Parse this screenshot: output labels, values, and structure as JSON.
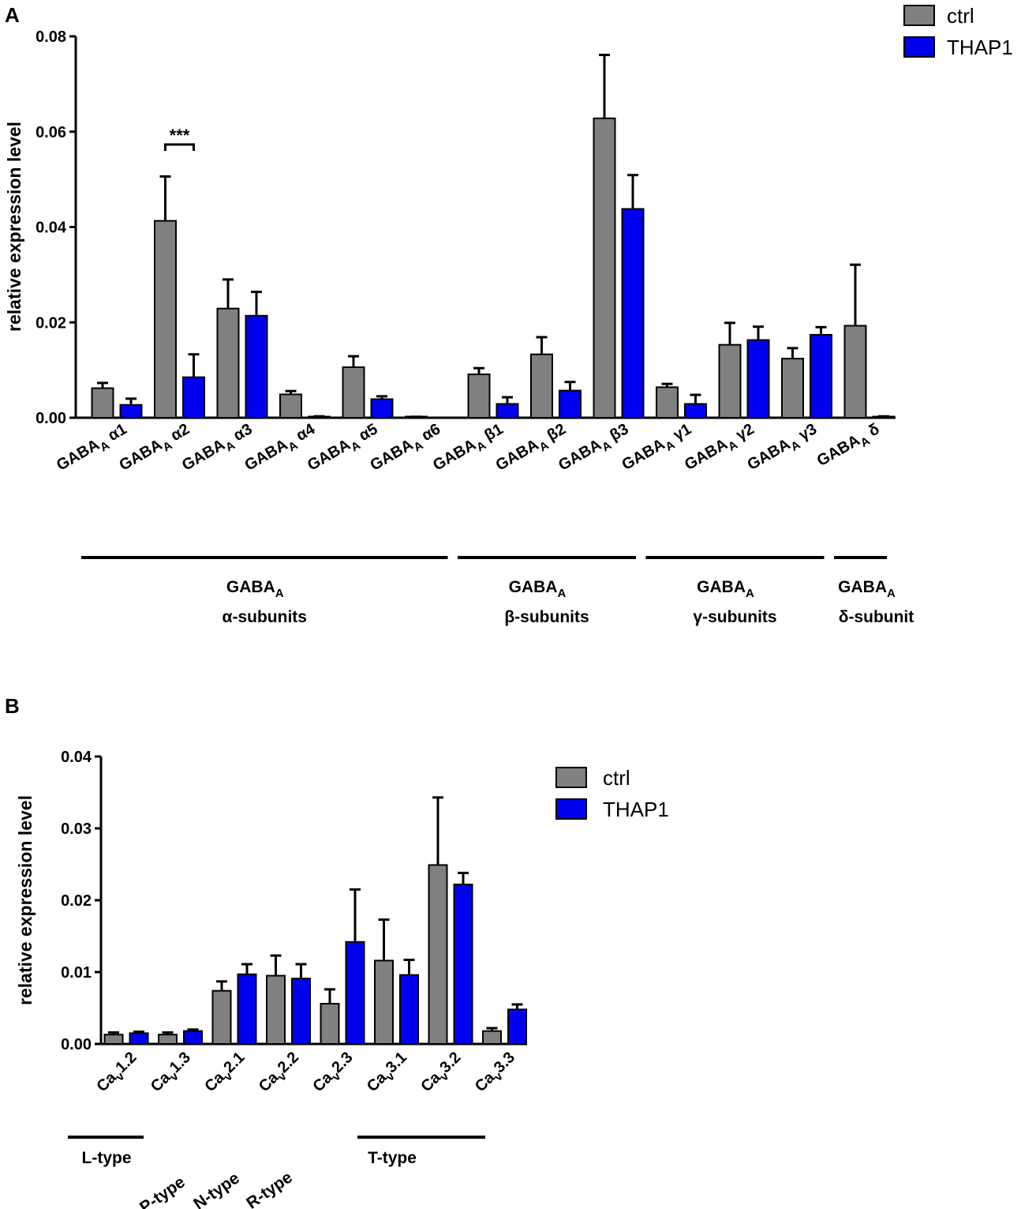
{
  "colors": {
    "ctrl": "#808080",
    "thap1": "#0000f0",
    "axis": "#000000"
  },
  "chart_data": [
    {
      "panel": "A",
      "type": "bar",
      "ylabel": "relative expression level",
      "ylim": [
        0,
        0.08
      ],
      "yticks": [
        "0.00",
        "0.02",
        "0.04",
        "0.06",
        "0.08"
      ],
      "ytick_values": [
        0,
        0.02,
        0.04,
        0.06,
        0.08
      ],
      "categories": [
        {
          "base": "GABA",
          "sub": "A",
          "rest": " α1"
        },
        {
          "base": "GABA",
          "sub": "A",
          "rest": " α2"
        },
        {
          "base": "GABA",
          "sub": "A",
          "rest": " α3"
        },
        {
          "base": "GABA",
          "sub": "A",
          "rest": " α4"
        },
        {
          "base": "GABA",
          "sub": "A",
          "rest": " α5"
        },
        {
          "base": "GABA",
          "sub": "A",
          "rest": " α6"
        },
        {
          "base": "GABA",
          "sub": "A",
          "rest": " β1"
        },
        {
          "base": "GABA",
          "sub": "A",
          "rest": " β2"
        },
        {
          "base": "GABA",
          "sub": "A",
          "rest": " β3"
        },
        {
          "base": "GABA",
          "sub": "A",
          "rest": " γ1"
        },
        {
          "base": "GABA",
          "sub": "A",
          "rest": " γ2"
        },
        {
          "base": "GABA",
          "sub": "A",
          "rest": " γ3"
        },
        {
          "base": "GABA",
          "sub": "A",
          "rest": " δ"
        }
      ],
      "series": [
        {
          "name": "ctrl",
          "values": [
            0.0062,
            0.0413,
            0.0229,
            0.0049,
            0.0106,
            0.0001,
            0.0091,
            0.0133,
            0.0628,
            0.0064,
            0.0153,
            0.0124,
            0.0193
          ],
          "errors": [
            0.0011,
            0.0093,
            0.0061,
            0.0007,
            0.0023,
            0.0001,
            0.0013,
            0.0036,
            0.0133,
            0.0007,
            0.0046,
            0.0022,
            0.0128
          ]
        },
        {
          "name": "THAP1",
          "values": [
            0.0027,
            0.0085,
            0.0214,
            0.0002,
            0.0039,
            0.0,
            0.0029,
            0.0057,
            0.0438,
            0.0029,
            0.0163,
            0.0174,
            0.0002
          ],
          "errors": [
            0.0013,
            0.0048,
            0.005,
            0.0001,
            0.0006,
            0.0,
            0.0014,
            0.0018,
            0.0071,
            0.0019,
            0.0028,
            0.0016,
            0.0001
          ]
        }
      ],
      "significance": {
        "category_index": 1,
        "label": "***"
      },
      "groups": [
        {
          "label": "GABA",
          "sub": "A",
          "line2": "α-subunits",
          "from": 0,
          "to": 5
        },
        {
          "label": "GABA",
          "sub": "A",
          "line2": "β-subunits",
          "from": 6,
          "to": 8
        },
        {
          "label": "GABA",
          "sub": "A",
          "line2": "γ-subunits",
          "from": 9,
          "to": 11
        },
        {
          "label": "GABA",
          "sub": "A",
          "line2": "δ-subunit",
          "from": 12,
          "to": 12
        }
      ],
      "legend": [
        "ctrl",
        "THAP1"
      ]
    },
    {
      "panel": "B",
      "type": "bar",
      "ylabel": "relative expression level",
      "ylim": [
        0,
        0.04
      ],
      "yticks": [
        "0.00",
        "0.01",
        "0.02",
        "0.03",
        "0.04"
      ],
      "ytick_values": [
        0,
        0.01,
        0.02,
        0.03,
        0.04
      ],
      "categories": [
        {
          "base": "Ca",
          "sub": "v",
          "rest": "1.2"
        },
        {
          "base": "Ca",
          "sub": "v",
          "rest": "1.3"
        },
        {
          "base": "Ca",
          "sub": "v",
          "rest": "2.1"
        },
        {
          "base": "Ca",
          "sub": "v",
          "rest": "2.2"
        },
        {
          "base": "Ca",
          "sub": "v",
          "rest": "2.3"
        },
        {
          "base": "Ca",
          "sub": "v",
          "rest": "3.1"
        },
        {
          "base": "Ca",
          "sub": "v",
          "rest": "3.2"
        },
        {
          "base": "Ca",
          "sub": "v",
          "rest": "3.3"
        }
      ],
      "series": [
        {
          "name": "ctrl",
          "values": [
            0.0013,
            0.0013,
            0.0074,
            0.0095,
            0.0056,
            0.0116,
            0.0249,
            0.0018
          ],
          "errors": [
            0.0003,
            0.0003,
            0.0013,
            0.0028,
            0.002,
            0.0057,
            0.0094,
            0.0004
          ]
        },
        {
          "name": "THAP1",
          "values": [
            0.0015,
            0.0018,
            0.0097,
            0.0091,
            0.0142,
            0.0096,
            0.0222,
            0.0048
          ],
          "errors": [
            0.0002,
            0.0002,
            0.0014,
            0.002,
            0.0073,
            0.0021,
            0.0016,
            0.0007
          ]
        }
      ],
      "type_labels": [
        {
          "label": "L-type",
          "line": true
        },
        {
          "label": "P-type",
          "line": false
        },
        {
          "label": "N-type",
          "line": false
        },
        {
          "label": "R-type",
          "line": false
        },
        {
          "label": "T-type",
          "line": true
        }
      ],
      "legend": [
        "ctrl",
        "THAP1"
      ]
    }
  ]
}
